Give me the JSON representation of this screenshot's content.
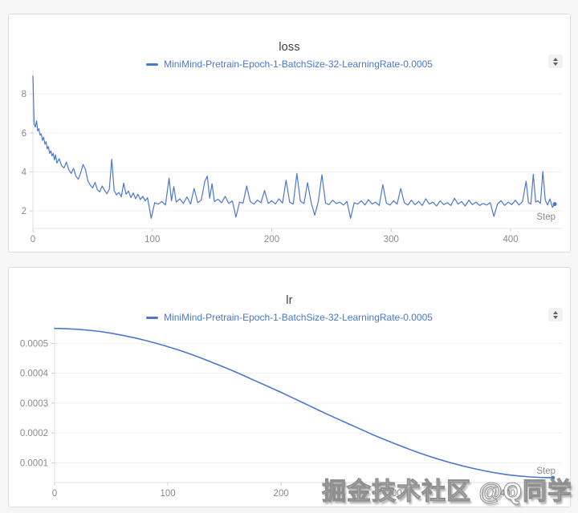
{
  "colors": {
    "accent": "#4a77cf",
    "page_bg": "#f6f6f7",
    "card_bg": "#ffffff",
    "card_border": "#dcdcdc",
    "grid": "#f0f0f0",
    "axis": "#e2e2e2",
    "tick_mark": "#cfcfcf",
    "tick_label": "#8a8a8a",
    "title": "#3d3d3d"
  },
  "watermark": {
    "text": "掘金技术社区 @Q同学"
  },
  "stepper_icon": "up-down-stepper",
  "chart_data": [
    {
      "type": "line",
      "title": "loss",
      "xlabel": "Step",
      "legend_position": "top",
      "grid": true,
      "x_ticks": [
        0,
        100,
        200,
        300,
        400
      ],
      "y_ticks": [
        2,
        4,
        6,
        8
      ],
      "y_tick_labels": [
        "2",
        "4",
        "6",
        "8"
      ],
      "xlim": [
        0,
        443
      ],
      "ylim": [
        1.1,
        9.2
      ],
      "series": [
        {
          "name": "MiniMind-Pretrain-Epoch-1-BatchSize-32-LearningRate-0.0005",
          "color": "#4a77cf",
          "points": [
            [
              0,
              8.92
            ],
            [
              1,
              6.45
            ],
            [
              2,
              6.3
            ],
            [
              3,
              6.62
            ],
            [
              4,
              6.1
            ],
            [
              5,
              6.22
            ],
            [
              6,
              5.88
            ],
            [
              7,
              5.95
            ],
            [
              8,
              5.62
            ],
            [
              9,
              5.78
            ],
            [
              10,
              5.42
            ],
            [
              11,
              5.55
            ],
            [
              12,
              5.18
            ],
            [
              13,
              5.3
            ],
            [
              14,
              4.95
            ],
            [
              15,
              5.08
            ],
            [
              16,
              4.82
            ],
            [
              17,
              4.95
            ],
            [
              18,
              4.62
            ],
            [
              19,
              4.88
            ],
            [
              20,
              4.45
            ],
            [
              22,
              4.68
            ],
            [
              24,
              4.32
            ],
            [
              26,
              4.2
            ],
            [
              28,
              4.5
            ],
            [
              30,
              4.12
            ],
            [
              32,
              3.92
            ],
            [
              34,
              4.18
            ],
            [
              36,
              3.78
            ],
            [
              38,
              3.62
            ],
            [
              40,
              3.95
            ],
            [
              42,
              4.38
            ],
            [
              44,
              4.12
            ],
            [
              46,
              3.55
            ],
            [
              48,
              3.32
            ],
            [
              50,
              3.18
            ],
            [
              52,
              3.46
            ],
            [
              54,
              3.08
            ],
            [
              56,
              2.98
            ],
            [
              58,
              3.28
            ],
            [
              60,
              3.05
            ],
            [
              62,
              2.88
            ],
            [
              64,
              3.12
            ],
            [
              66,
              4.65
            ],
            [
              68,
              3.05
            ],
            [
              70,
              2.82
            ],
            [
              72,
              2.95
            ],
            [
              74,
              2.72
            ],
            [
              76,
              3.42
            ],
            [
              78,
              2.85
            ],
            [
              80,
              3.02
            ],
            [
              82,
              2.68
            ],
            [
              84,
              2.92
            ],
            [
              86,
              2.62
            ],
            [
              88,
              2.85
            ],
            [
              90,
              2.58
            ],
            [
              92,
              2.75
            ],
            [
              94,
              2.52
            ],
            [
              96,
              2.68
            ],
            [
              99,
              1.62
            ],
            [
              102,
              2.42
            ],
            [
              105,
              2.35
            ],
            [
              108,
              2.48
            ],
            [
              111,
              2.3
            ],
            [
              114,
              3.68
            ],
            [
              116,
              2.52
            ],
            [
              118,
              3.25
            ],
            [
              120,
              2.45
            ],
            [
              123,
              2.62
            ],
            [
              126,
              2.38
            ],
            [
              129,
              2.72
            ],
            [
              132,
              2.35
            ],
            [
              135,
              3.15
            ],
            [
              138,
              2.42
            ],
            [
              141,
              2.55
            ],
            [
              144,
              3.52
            ],
            [
              146,
              3.78
            ],
            [
              148,
              2.65
            ],
            [
              150,
              3.4
            ],
            [
              152,
              2.48
            ],
            [
              155,
              2.6
            ],
            [
              158,
              2.42
            ],
            [
              161,
              2.75
            ],
            [
              164,
              2.38
            ],
            [
              167,
              2.52
            ],
            [
              170,
              1.68
            ],
            [
              173,
              2.45
            ],
            [
              176,
              2.4
            ],
            [
              179,
              3.28
            ],
            [
              182,
              2.48
            ],
            [
              185,
              2.35
            ],
            [
              188,
              2.55
            ],
            [
              191,
              2.42
            ],
            [
              194,
              3.05
            ],
            [
              197,
              2.38
            ],
            [
              200,
              2.52
            ],
            [
              203,
              2.35
            ],
            [
              206,
              2.62
            ],
            [
              209,
              2.4
            ],
            [
              212,
              3.58
            ],
            [
              215,
              2.45
            ],
            [
              218,
              2.35
            ],
            [
              221,
              3.92
            ],
            [
              224,
              2.5
            ],
            [
              227,
              2.38
            ],
            [
              230,
              3.45
            ],
            [
              233,
              2.42
            ],
            [
              236,
              1.78
            ],
            [
              239,
              2.48
            ],
            [
              242,
              3.85
            ],
            [
              245,
              2.4
            ],
            [
              248,
              2.32
            ],
            [
              251,
              2.55
            ],
            [
              254,
              2.38
            ],
            [
              257,
              2.45
            ],
            [
              260,
              2.3
            ],
            [
              263,
              2.48
            ],
            [
              266,
              1.62
            ],
            [
              269,
              2.42
            ],
            [
              272,
              2.35
            ],
            [
              275,
              2.52
            ],
            [
              278,
              2.3
            ],
            [
              281,
              2.58
            ],
            [
              284,
              2.35
            ],
            [
              287,
              2.45
            ],
            [
              290,
              2.28
            ],
            [
              293,
              3.35
            ],
            [
              296,
              2.4
            ],
            [
              299,
              2.3
            ],
            [
              302,
              2.52
            ],
            [
              305,
              2.35
            ],
            [
              308,
              3.15
            ],
            [
              311,
              2.42
            ],
            [
              314,
              2.3
            ],
            [
              317,
              2.55
            ],
            [
              320,
              2.32
            ],
            [
              323,
              2.48
            ],
            [
              326,
              2.28
            ],
            [
              329,
              2.62
            ],
            [
              332,
              2.35
            ],
            [
              335,
              2.45
            ],
            [
              338,
              2.25
            ],
            [
              341,
              2.52
            ],
            [
              344,
              2.32
            ],
            [
              347,
              2.42
            ],
            [
              350,
              2.28
            ],
            [
              353,
              2.65
            ],
            [
              356,
              2.35
            ],
            [
              359,
              2.48
            ],
            [
              362,
              2.25
            ],
            [
              365,
              2.55
            ],
            [
              368,
              2.32
            ],
            [
              371,
              2.45
            ],
            [
              374,
              2.28
            ],
            [
              377,
              2.38
            ],
            [
              380,
              2.3
            ],
            [
              383,
              2.42
            ],
            [
              386,
              1.72
            ],
            [
              389,
              2.35
            ],
            [
              392,
              2.52
            ],
            [
              395,
              2.28
            ],
            [
              398,
              2.45
            ],
            [
              401,
              2.32
            ],
            [
              404,
              2.55
            ],
            [
              407,
              2.3
            ],
            [
              410,
              2.48
            ],
            [
              413,
              3.52
            ],
            [
              415,
              2.42
            ],
            [
              417,
              2.35
            ],
            [
              419,
              3.88
            ],
            [
              421,
              2.45
            ],
            [
              423,
              2.52
            ],
            [
              425,
              2.38
            ],
            [
              427,
              4.02
            ],
            [
              429,
              2.55
            ],
            [
              431,
              2.3
            ],
            [
              433,
              2.62
            ],
            [
              435,
              2.18
            ],
            [
              437,
              2.35
            ]
          ]
        }
      ]
    },
    {
      "type": "line",
      "title": "lr",
      "xlabel": "Step",
      "legend_position": "top",
      "grid": true,
      "x_ticks": [
        0,
        100,
        200,
        300,
        400
      ],
      "y_ticks": [
        0.0001,
        0.0002,
        0.0003,
        0.0004,
        0.0005
      ],
      "y_tick_labels": [
        "0.0001",
        "0.0002",
        "0.0003",
        "0.0004",
        "0.0005"
      ],
      "xlim": [
        0,
        448
      ],
      "ylim": [
        3.41e-05,
        0.00056
      ],
      "series": [
        {
          "name": "MiniMind-Pretrain-Epoch-1-BatchSize-32-LearningRate-0.0005",
          "color": "#4a77cf",
          "points": [
            [
              0,
              0.00055
            ],
            [
              10,
              0.000549
            ],
            [
              20,
              0.000547
            ],
            [
              30,
              0.000544
            ],
            [
              40,
              0.00054
            ],
            [
              50,
              0.000534
            ],
            [
              60,
              0.000527
            ],
            [
              70,
              0.000519
            ],
            [
              80,
              0.00051
            ],
            [
              90,
              0.0005
            ],
            [
              100,
              0.000489
            ],
            [
              110,
              0.000477
            ],
            [
              120,
              0.000464
            ],
            [
              130,
              0.00045
            ],
            [
              140,
              0.000435
            ],
            [
              150,
              0.00042
            ],
            [
              160,
              0.000404
            ],
            [
              170,
              0.000387
            ],
            [
              180,
              0.00037
            ],
            [
              190,
              0.000353
            ],
            [
              200,
              0.000336
            ],
            [
              210,
              0.000318
            ],
            [
              220,
              0.0003
            ],
            [
              230,
              0.000282
            ],
            [
              240,
              0.000264
            ],
            [
              250,
              0.000247
            ],
            [
              260,
              0.00023
            ],
            [
              270,
              0.000213
            ],
            [
              280,
              0.000196
            ],
            [
              290,
              0.00018
            ],
            [
              300,
              0.000165
            ],
            [
              310,
              0.00015
            ],
            [
              320,
              0.000136
            ],
            [
              330,
              0.000123
            ],
            [
              340,
              0.000111
            ],
            [
              350,
              0.0001
            ],
            [
              360,
              9e-05
            ],
            [
              370,
              8.1e-05
            ],
            [
              380,
              7.3e-05
            ],
            [
              390,
              6.6e-05
            ],
            [
              400,
              6e-05
            ],
            [
              410,
              5.6e-05
            ],
            [
              420,
              5.3e-05
            ],
            [
              430,
              5.1e-05
            ],
            [
              440,
              5e-05
            ]
          ]
        }
      ]
    }
  ]
}
